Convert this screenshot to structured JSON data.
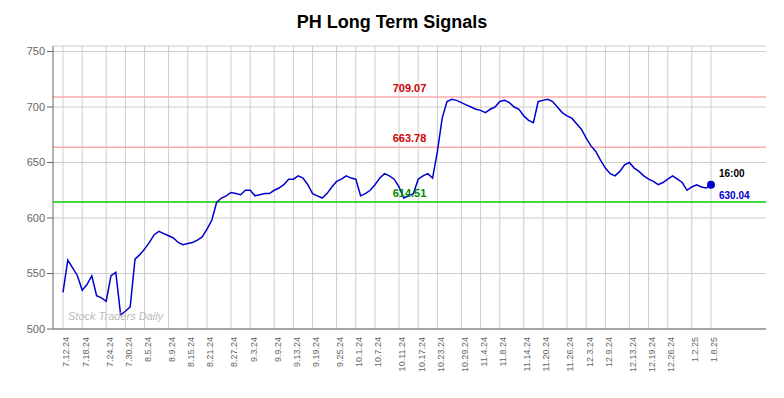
{
  "chart_data": {
    "type": "line",
    "title": "PH Long Term Signals",
    "color": "#0000cc",
    "grid": true,
    "grid_color": "#cccccc",
    "ylim": [
      500,
      755
    ],
    "yticks": [
      500,
      550,
      600,
      650,
      700,
      750
    ],
    "categories": [
      "7.12.24",
      null,
      null,
      null,
      "7.18.24",
      null,
      null,
      null,
      null,
      "7.24.24",
      null,
      null,
      null,
      "7.30.24",
      null,
      null,
      null,
      "8.5.24",
      null,
      null,
      null,
      null,
      "8.9.24",
      null,
      null,
      null,
      "8.15.24",
      null,
      null,
      null,
      "8.21.24",
      null,
      null,
      null,
      null,
      "8.27.24",
      null,
      null,
      null,
      "9.3.24",
      null,
      null,
      null,
      null,
      "9.9.24",
      null,
      null,
      null,
      "9.13.24",
      null,
      null,
      null,
      "9.19.24",
      null,
      null,
      null,
      null,
      "9.25.24",
      null,
      null,
      null,
      "10.1.24",
      null,
      null,
      null,
      "10.7.24",
      null,
      null,
      null,
      null,
      "10.11.24",
      null,
      null,
      null,
      "10.17.24",
      null,
      null,
      null,
      "10.23.24",
      null,
      null,
      null,
      null,
      "10.29.24",
      null,
      null,
      null,
      "11.4.24",
      null,
      null,
      null,
      "11.8.24",
      null,
      null,
      null,
      null,
      "11.14.24",
      null,
      null,
      null,
      "11.20.24",
      null,
      null,
      null,
      null,
      "11.26.24",
      null,
      null,
      null,
      "12.3.24",
      null,
      null,
      null,
      "12.9.24",
      null,
      null,
      null,
      null,
      "12.13.24",
      null,
      null,
      null,
      "12.19.24",
      null,
      null,
      null,
      "12.26.24",
      null,
      null,
      null,
      null,
      "1.2.25",
      null,
      null,
      null,
      "1.8.25"
    ],
    "values": [
      533,
      562,
      555,
      548,
      535,
      540,
      548,
      530,
      528,
      525,
      548,
      551,
      513,
      516,
      520,
      563,
      567,
      572,
      578,
      585,
      588,
      586,
      584,
      582,
      578,
      576,
      577,
      578,
      580,
      583,
      590,
      598,
      614,
      618,
      620,
      623,
      622,
      621,
      625,
      625,
      620,
      621,
      622,
      622,
      625,
      627,
      630,
      635,
      635,
      638,
      636,
      630,
      622,
      620,
      618,
      622,
      628,
      633,
      635,
      638,
      636,
      635,
      620,
      622,
      625,
      630,
      636,
      640,
      638,
      635,
      628,
      618,
      620,
      622,
      635,
      638,
      640,
      636,
      660,
      690,
      705,
      707,
      706,
      704,
      702,
      700,
      698,
      697,
      695,
      698,
      700,
      705,
      706,
      704,
      700,
      698,
      692,
      688,
      686,
      705,
      706,
      707,
      705,
      700,
      695,
      692,
      690,
      685,
      680,
      672,
      665,
      660,
      652,
      645,
      640,
      638,
      642,
      648,
      650,
      645,
      642,
      638,
      635,
      633,
      630,
      632,
      635,
      638,
      635,
      632,
      625,
      628,
      630,
      628,
      627,
      630
    ],
    "reference_lines": [
      {
        "value": 709.07,
        "color": "#ffaaaa",
        "label": "709.07",
        "label_color": "#cc0000"
      },
      {
        "value": 663.78,
        "color": "#ffaaaa",
        "label": "663.78",
        "label_color": "#cc0000"
      },
      {
        "value": 614.51,
        "color": "#00cc00",
        "label": "614.51",
        "label_color": "#008800"
      }
    ],
    "end_point": {
      "value": 630.04,
      "label": "16:00",
      "color": "#0000cc",
      "label_color": "#000000"
    },
    "watermark": {
      "text": "Stock Traders Daily",
      "color": "#bbbbbb"
    }
  }
}
